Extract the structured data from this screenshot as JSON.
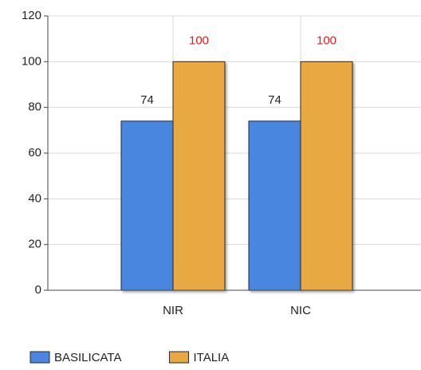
{
  "chart_data": {
    "type": "bar",
    "categories": [
      "NIR",
      "NIC"
    ],
    "series": [
      {
        "name": "BASILICATA",
        "color": "#4a86e0",
        "label_color": "#222222",
        "values": [
          74,
          74
        ]
      },
      {
        "name": "ITALIA",
        "color": "#e8a842",
        "label_color": "#d62020",
        "values": [
          100,
          100
        ]
      }
    ],
    "ylim": [
      0,
      120
    ],
    "yticks": [
      0,
      20,
      40,
      60,
      80,
      100,
      120
    ],
    "grid": true
  }
}
